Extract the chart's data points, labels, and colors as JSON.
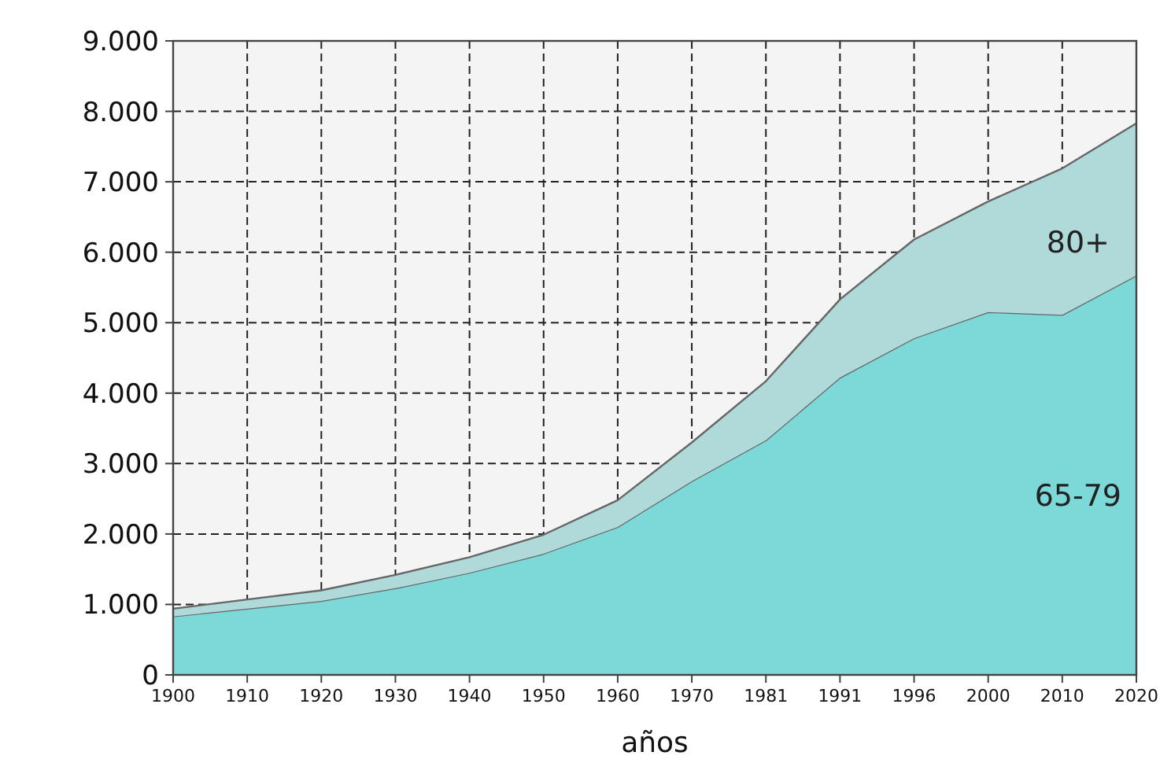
{
  "chart_data": {
    "type": "area",
    "stacked": true,
    "xlabel": "años",
    "categories": [
      "1900",
      "1910",
      "1920",
      "1930",
      "1940",
      "1950",
      "1960",
      "1970",
      "1981",
      "1991",
      "1996",
      "2000",
      "2010",
      "2020"
    ],
    "series": [
      {
        "name": "65-79",
        "color": "#7dd8d8",
        "values": [
          830,
          940,
          1050,
          1230,
          1450,
          1720,
          2100,
          2750,
          3330,
          4220,
          4780,
          5150,
          5110,
          5670
        ]
      },
      {
        "name": "80+",
        "color": "#b0dada",
        "values": [
          110,
          130,
          150,
          190,
          220,
          270,
          380,
          550,
          840,
          1110,
          1400,
          1570,
          2080,
          2160
        ]
      }
    ],
    "ylim": [
      0,
      9000
    ],
    "yticks": [
      {
        "value": 0,
        "label": "0"
      },
      {
        "value": 1000,
        "label": "1.000"
      },
      {
        "value": 2000,
        "label": "2.000"
      },
      {
        "value": 3000,
        "label": "3.000"
      },
      {
        "value": 4000,
        "label": "4.000"
      },
      {
        "value": 5000,
        "label": "5.000"
      },
      {
        "value": 6000,
        "label": "6.000"
      },
      {
        "value": 7000,
        "label": "7.000"
      },
      {
        "value": 8000,
        "label": "8.000"
      },
      {
        "value": 9000,
        "label": "9.000"
      }
    ],
    "grid": true,
    "line_style": "solid"
  }
}
